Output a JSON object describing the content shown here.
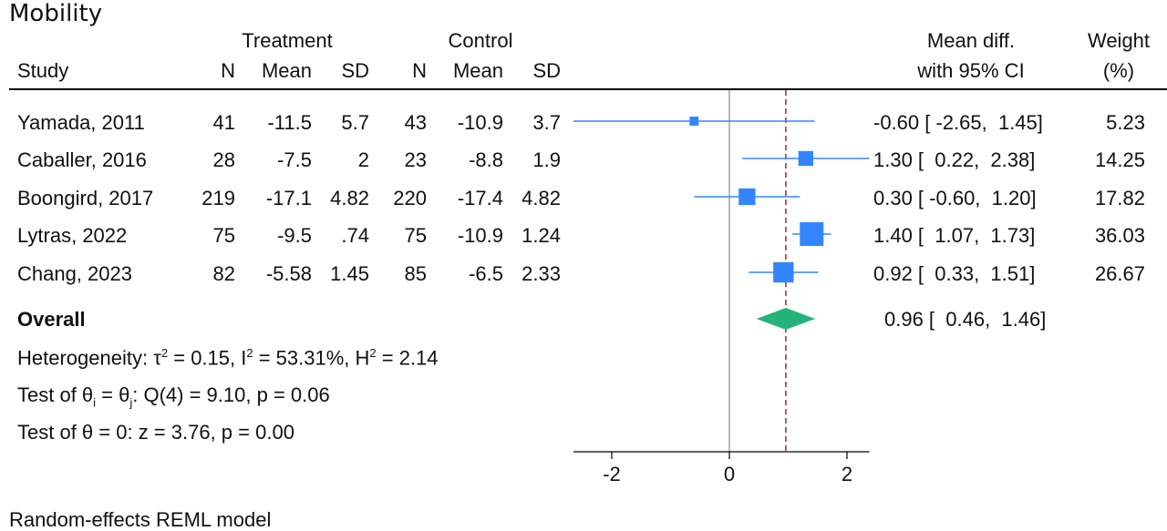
{
  "title": "Mobility",
  "headers": {
    "treatment": "Treatment",
    "control": "Control",
    "study": "Study",
    "n": "N",
    "mean": "Mean",
    "sd": "SD",
    "md_line1": "Mean diff.",
    "md_line2": "with 95% CI",
    "weight_line1": "Weight",
    "weight_line2": "(%)"
  },
  "rows": [
    {
      "study": "Yamada, 2011",
      "tn": "41",
      "tmean": "-11.5",
      "tsd": "5.7",
      "cn": "43",
      "cmean": "-10.9",
      "csd": "3.7",
      "ci_text": "-0.60 [ -2.65,  1.45]",
      "weight": "5.23"
    },
    {
      "study": "Caballer, 2016",
      "tn": "28",
      "tmean": "-7.5",
      "tsd": "2",
      "cn": "23",
      "cmean": "-8.8",
      "csd": "1.9",
      "ci_text": "1.30 [  0.22,  2.38]",
      "weight": "14.25"
    },
    {
      "study": "Boongird, 2017",
      "tn": "219",
      "tmean": "-17.1",
      "tsd": "4.82",
      "cn": "220",
      "cmean": "-17.4",
      "csd": "4.82",
      "ci_text": "0.30 [ -0.60,  1.20]",
      "weight": "17.82"
    },
    {
      "study": "Lytras, 2022",
      "tn": "75",
      "tmean": "-9.5",
      "tsd": ".74",
      "cn": "75",
      "cmean": "-10.9",
      "csd": "1.24",
      "ci_text": "1.40 [  1.07,  1.73]",
      "weight": "36.03"
    },
    {
      "study": "Chang, 2023",
      "tn": "82",
      "tmean": "-5.58",
      "tsd": "1.45",
      "cn": "85",
      "cmean": "-6.5",
      "csd": "2.33",
      "ci_text": "0.92 [  0.33,  1.51]",
      "weight": "26.67"
    }
  ],
  "overall": {
    "label": "Overall",
    "ci_text": "0.96 [  0.46,  1.46]"
  },
  "stats": {
    "heterogeneity": "Heterogeneity: τ² = 0.15, I² = 53.31%, H² = 2.14",
    "test_q": "Test of θᵢ = θⱼ: Q(4) = 9.10, p = 0.06",
    "test_z": "Test of θ = 0: z = 3.76, p = 0.00"
  },
  "footer": "Random-effects REML model",
  "colors": {
    "marker": "#3385ff",
    "ci_line": "#3385ff",
    "diamond": "#26b37a",
    "overall_line": "#a0233b",
    "axis": "#000000",
    "zero_line": "#888888"
  },
  "chart_data": {
    "type": "forest",
    "studies": [
      "Yamada, 2011",
      "Caballer, 2016",
      "Boongird, 2017",
      "Lytras, 2022",
      "Chang, 2023"
    ],
    "effect": [
      -0.6,
      1.3,
      0.3,
      1.4,
      0.92
    ],
    "ci_low": [
      -2.65,
      0.22,
      -0.6,
      1.07,
      0.33
    ],
    "ci_high": [
      1.45,
      2.38,
      1.2,
      1.73,
      1.51
    ],
    "weight": [
      5.23,
      14.25,
      17.82,
      36.03,
      26.67
    ],
    "overall": {
      "effect": 0.96,
      "ci_low": 0.46,
      "ci_high": 1.46
    },
    "xticks": [
      -2,
      0,
      2
    ],
    "xlim": [
      -2.65,
      2.38
    ],
    "reference_line": 0,
    "overall_line": 0.96
  }
}
